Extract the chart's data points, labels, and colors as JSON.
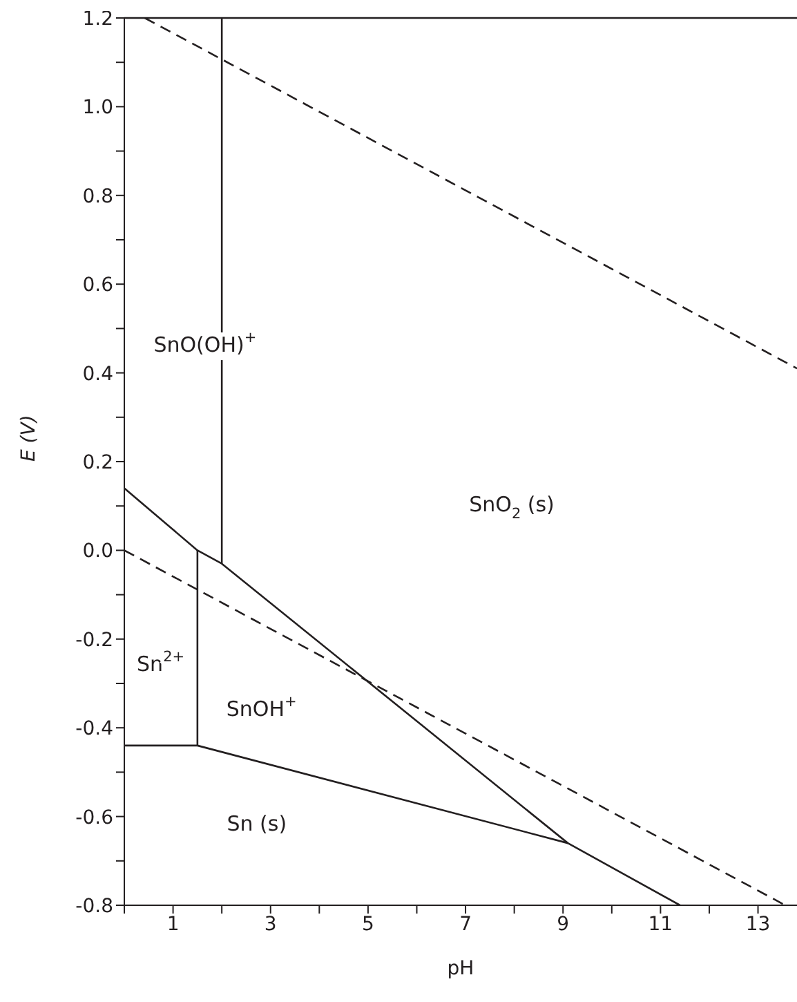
{
  "chart_data": {
    "type": "line",
    "xlabel": "pH",
    "ylabel": "E (V)",
    "xlim": [
      0,
      13.8
    ],
    "xticks": [
      {
        "value": 0,
        "label": null
      },
      1,
      {
        "value": 2,
        "label": null
      },
      3,
      {
        "value": 4,
        "label": null
      },
      5,
      {
        "value": 6,
        "label": null
      },
      7,
      {
        "value": 8,
        "label": null
      },
      9,
      {
        "value": 10,
        "label": null
      },
      11,
      {
        "value": 12,
        "label": null
      },
      13
    ],
    "ylim": [
      -0.8,
      1.2
    ],
    "yticks": [
      -0.8,
      {
        "value": -0.7,
        "label": null
      },
      -0.6,
      {
        "value": -0.5,
        "label": null
      },
      -0.4,
      {
        "value": -0.3,
        "label": null
      },
      -0.2,
      {
        "value": -0.1,
        "label": null
      },
      {
        "value": 0,
        "label": "0.0"
      },
      {
        "value": 0.1,
        "label": null
      },
      0.2,
      {
        "value": 0.3,
        "label": null
      },
      0.4,
      {
        "value": 0.5,
        "label": null
      },
      0.6,
      {
        "value": 0.7,
        "label": null
      },
      0.8,
      {
        "value": 0.9,
        "label": null
      },
      {
        "value": 1,
        "label": "1.0"
      },
      {
        "value": 1.1,
        "label": null
      },
      1.2
    ],
    "grid": false,
    "marker": "none",
    "ref_lines": [
      {
        "axis": "y",
        "value": 1.2,
        "color": "#231f20",
        "line_style": "solid"
      }
    ],
    "series": [
      {
        "color": "#231f20",
        "line_style": "dashed",
        "x": [
          0.42,
          13.8
        ],
        "values": [
          1.2,
          0.41
        ]
      },
      {
        "color": "#231f20",
        "line_style": "dashed",
        "x": [
          0,
          13.56
        ],
        "values": [
          0,
          -0.8
        ]
      },
      {
        "color": "#231f20",
        "line_style": "solid",
        "x": [
          2,
          2
        ],
        "values": [
          1.2,
          -0.03
        ]
      },
      {
        "color": "#231f20",
        "line_style": "solid",
        "x": [
          0,
          1.5,
          2,
          9.1,
          11.4
        ],
        "values": [
          0.14,
          0,
          -0.03,
          -0.66,
          -0.8
        ]
      },
      {
        "color": "#231f20",
        "line_style": "solid",
        "x": [
          1.5,
          1.5
        ],
        "values": [
          0,
          -0.44
        ]
      },
      {
        "color": "#231f20",
        "line_style": "solid",
        "x": [
          0,
          1.5,
          9.1
        ],
        "values": [
          -0.44,
          -0.44,
          -0.66
        ]
      }
    ],
    "annotations": [
      "SnO(OH)$^{+}$",
      "SnO$_{2}$ (s)",
      "Sn$^{2+}$",
      "SnOH$^{+}$",
      "Sn (s)"
    ]
  }
}
